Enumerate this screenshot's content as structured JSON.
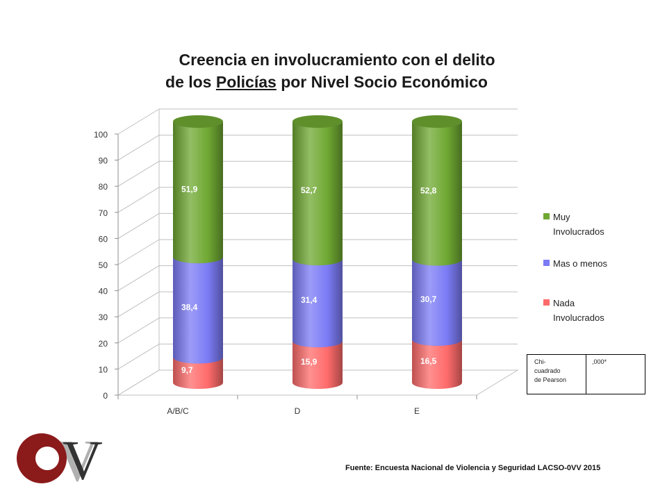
{
  "title": {
    "line1": "Creencia en involucramiento con el delito",
    "line2_pre": "de los ",
    "line2_underlined": "Policías",
    "line2_post": " por Nivel Socio Económico"
  },
  "chart_data": {
    "type": "bar",
    "stacked": true,
    "three_d": true,
    "categories": [
      "A/B/C",
      "D",
      "E"
    ],
    "series": [
      {
        "name": "Nada Involucrados",
        "color": "#ff6b6b",
        "values": [
          9.7,
          15.9,
          16.5
        ]
      },
      {
        "name": "Mas o menos",
        "color": "#7b7bf5",
        "values": [
          38.4,
          31.4,
          30.7
        ]
      },
      {
        "name": "Muy Involucrados",
        "color": "#6fa832",
        "values": [
          51.9,
          52.7,
          52.8
        ]
      }
    ],
    "data_labels": [
      [
        "9,7",
        "15,9",
        "16,5"
      ],
      [
        "38,4",
        "31,4",
        "30,7"
      ],
      [
        "51,9",
        "52,7",
        "52,8"
      ]
    ],
    "ylim": [
      0,
      100
    ],
    "yticks": [
      "0",
      "10",
      "20",
      "30",
      "40",
      "50",
      "60",
      "70",
      "80",
      "90",
      "100"
    ],
    "grid": true,
    "legend_position": "right"
  },
  "legend": {
    "items": [
      {
        "name": "Muy Involucrados",
        "line1": "Muy",
        "line2": "Involucrados",
        "color": "#6fa832"
      },
      {
        "name": "Mas o menos",
        "line1": "Mas o menos",
        "line2": "",
        "color": "#7b7bf5"
      },
      {
        "name": "Nada Involucrados",
        "line1": "Nada",
        "line2": "Involucrados",
        "color": "#ff6b6b"
      }
    ]
  },
  "stats_box": {
    "label_lines": [
      "Chi-",
      "cuadrado",
      "de Pearson"
    ],
    "value": ",000*"
  },
  "source": "Fuente: Encuesta Nacional de Violencia y Seguridad LACSO-0VV 2015",
  "logo": {
    "text": "OVV",
    "colors": {
      "o": "#8b1a1a",
      "v": "#3a3a3a",
      "shadow": "#b0b0b0"
    }
  }
}
